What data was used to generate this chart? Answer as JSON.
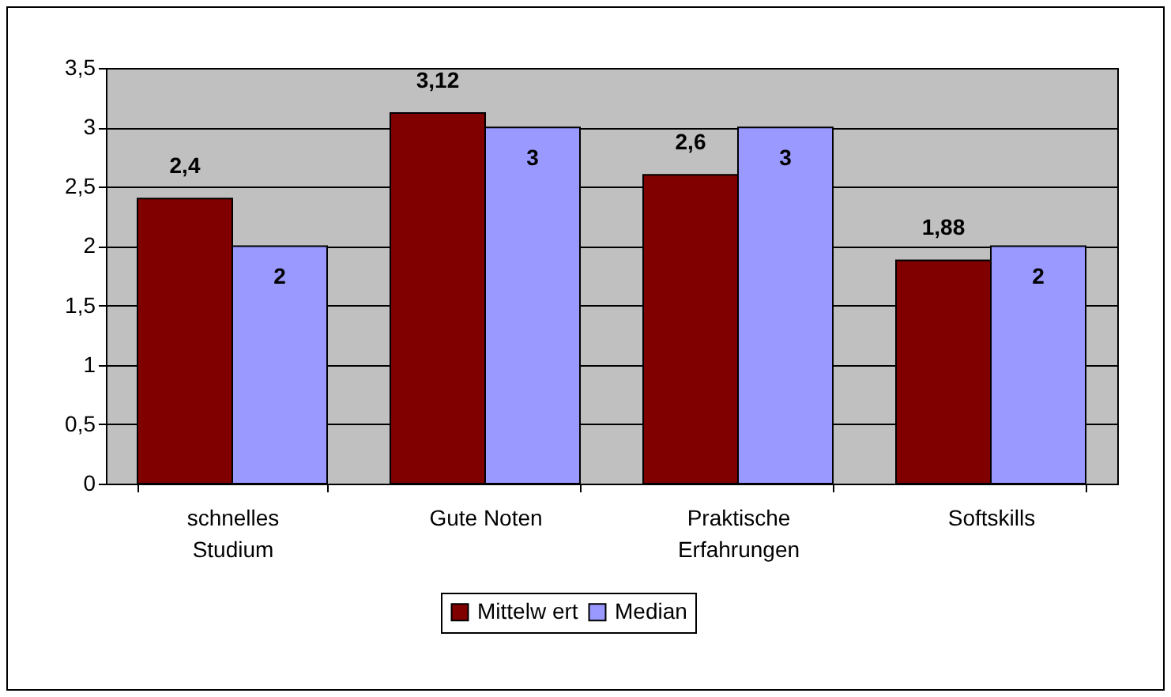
{
  "chart_data": {
    "type": "bar",
    "categories": [
      "schnelles Studium",
      "Gute Noten",
      "Praktische Erfahrungen",
      "Softskills"
    ],
    "series": [
      {
        "name": "Mittelw ert",
        "color": "#800000",
        "values": [
          2.4,
          3.12,
          2.6,
          1.88
        ],
        "value_labels": [
          "2,4",
          "3,12",
          "2,6",
          "1,88"
        ]
      },
      {
        "name": "Median",
        "color": "#9999ff",
        "values": [
          2,
          3,
          3,
          2
        ],
        "value_labels": [
          "2",
          "3",
          "3",
          "2"
        ]
      }
    ],
    "ylim": [
      0,
      3.5
    ],
    "yticks": [
      0,
      {
        "value": 0.5,
        "label": "0,5"
      },
      1,
      {
        "value": 1.5,
        "label": "1,5"
      },
      2,
      {
        "value": 2.5,
        "label": "2,5"
      },
      3,
      {
        "value": 3.5,
        "label": "3,5"
      }
    ],
    "grid": "y",
    "legend": "bottom"
  }
}
